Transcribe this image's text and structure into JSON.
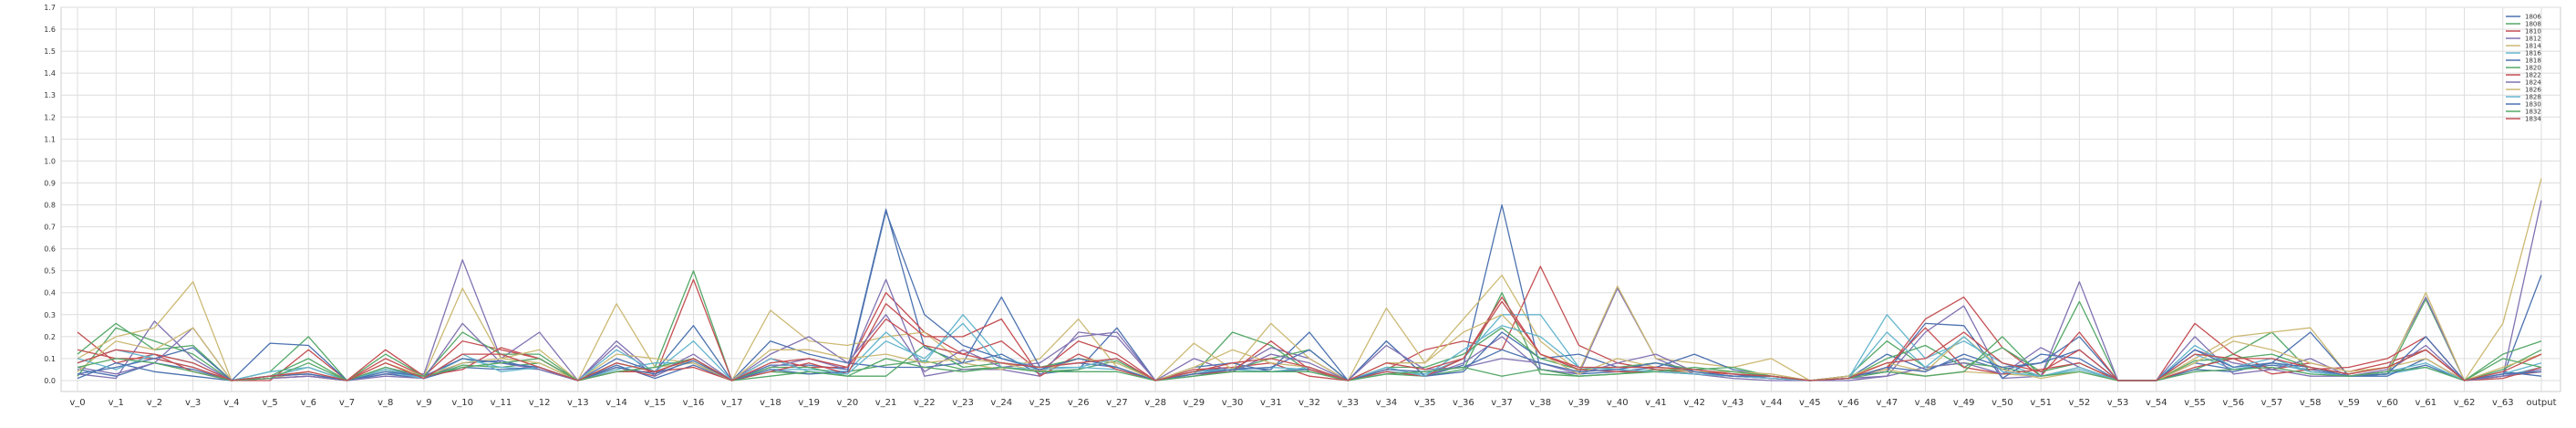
{
  "chart_data": {
    "type": "line",
    "title": "",
    "xlabel": "",
    "ylabel": "",
    "ylim": [
      -0.05,
      1.7
    ],
    "grid": true,
    "legend_position": "top-right",
    "yticks": [
      "0.0",
      "0.1",
      "0.2",
      "0.3",
      "0.4",
      "0.5",
      "0.6",
      "0.7",
      "0.8",
      "0.9",
      "1.0",
      "1.1",
      "1.2",
      "1.3",
      "1.4",
      "1.5",
      "1.6",
      "1.7"
    ],
    "categories": [
      "v_0",
      "v_1",
      "v_2",
      "v_3",
      "v_4",
      "v_5",
      "v_6",
      "v_7",
      "v_8",
      "v_9",
      "v_10",
      "v_11",
      "v_12",
      "v_13",
      "v_14",
      "v_15",
      "v_16",
      "v_17",
      "v_18",
      "v_19",
      "v_20",
      "v_21",
      "v_22",
      "v_23",
      "v_24",
      "v_25",
      "v_26",
      "v_27",
      "v_28",
      "v_29",
      "v_30",
      "v_31",
      "v_32",
      "v_33",
      "v_34",
      "v_35",
      "v_36",
      "v_37",
      "v_38",
      "v_39",
      "v_40",
      "v_41",
      "v_42",
      "v_43",
      "v_44",
      "v_45",
      "v_46",
      "v_47",
      "v_48",
      "v_49",
      "v_50",
      "v_51",
      "v_52",
      "v_53",
      "v_54",
      "v_55",
      "v_56",
      "v_57",
      "v_58",
      "v_59",
      "v_60",
      "v_61",
      "v_62",
      "v_63",
      "output"
    ],
    "series": [
      {
        "name": "1806",
        "color": "#4c72b0",
        "values": [
          0.05,
          0.02,
          0.08,
          0.05,
          0.0,
          0.02,
          0.03,
          0.0,
          0.06,
          0.01,
          0.08,
          0.09,
          0.05,
          0.0,
          0.07,
          0.01,
          0.07,
          0.0,
          0.07,
          0.07,
          0.05,
          0.78,
          0.15,
          0.08,
          0.12,
          0.03,
          0.05,
          0.24,
          0.0,
          0.04,
          0.06,
          0.05,
          0.22,
          0.0,
          0.04,
          0.02,
          0.07,
          0.8,
          0.05,
          0.03,
          0.04,
          0.06,
          0.05,
          0.03,
          0.01,
          0.0,
          0.01,
          0.12,
          0.05,
          0.1,
          0.05,
          0.08,
          0.2,
          0.0,
          0.0,
          0.08,
          0.05,
          0.07,
          0.05,
          0.02,
          0.03,
          0.07,
          0.0,
          0.02,
          0.48
        ]
      },
      {
        "name": "1808",
        "color": "#55a868",
        "values": [
          0.02,
          0.24,
          0.18,
          0.12,
          0.0,
          0.04,
          0.2,
          0.0,
          0.05,
          0.01,
          0.07,
          0.06,
          0.08,
          0.0,
          0.04,
          0.06,
          0.5,
          0.0,
          0.04,
          0.03,
          0.04,
          0.07,
          0.09,
          0.05,
          0.06,
          0.04,
          0.05,
          0.09,
          0.0,
          0.03,
          0.22,
          0.16,
          0.04,
          0.0,
          0.03,
          0.02,
          0.05,
          0.4,
          0.03,
          0.02,
          0.03,
          0.05,
          0.03,
          0.02,
          0.02,
          0.0,
          0.02,
          0.18,
          0.06,
          0.08,
          0.06,
          0.02,
          0.36,
          0.0,
          0.0,
          0.05,
          0.12,
          0.22,
          0.04,
          0.02,
          0.03,
          0.37,
          0.0,
          0.12,
          0.18
        ]
      },
      {
        "name": "1810",
        "color": "#c44e52",
        "values": [
          0.22,
          0.08,
          0.12,
          0.04,
          0.0,
          0.0,
          0.14,
          0.0,
          0.1,
          0.02,
          0.18,
          0.14,
          0.1,
          0.0,
          0.06,
          0.02,
          0.46,
          0.0,
          0.1,
          0.06,
          0.06,
          0.4,
          0.22,
          0.12,
          0.18,
          0.04,
          0.18,
          0.12,
          0.0,
          0.05,
          0.06,
          0.08,
          0.02,
          0.0,
          0.05,
          0.14,
          0.18,
          0.14,
          0.52,
          0.16,
          0.08,
          0.05,
          0.04,
          0.03,
          0.02,
          0.0,
          0.02,
          0.05,
          0.28,
          0.38,
          0.15,
          0.02,
          0.22,
          0.0,
          0.0,
          0.26,
          0.12,
          0.05,
          0.08,
          0.04,
          0.08,
          0.14,
          0.0,
          0.02,
          0.04
        ]
      },
      {
        "name": "1812",
        "color": "#8172b2",
        "values": [
          0.03,
          0.01,
          0.27,
          0.1,
          0.0,
          0.01,
          0.02,
          0.0,
          0.03,
          0.03,
          0.55,
          0.1,
          0.22,
          0.0,
          0.16,
          0.02,
          0.1,
          0.0,
          0.06,
          0.1,
          0.05,
          0.46,
          0.02,
          0.05,
          0.05,
          0.02,
          0.22,
          0.2,
          0.0,
          0.02,
          0.05,
          0.15,
          0.1,
          0.0,
          0.18,
          0.02,
          0.08,
          0.2,
          0.05,
          0.03,
          0.42,
          0.1,
          0.03,
          0.01,
          0.0,
          0.0,
          0.0,
          0.02,
          0.22,
          0.34,
          0.01,
          0.02,
          0.45,
          0.0,
          0.0,
          0.14,
          0.08,
          0.05,
          0.02,
          0.02,
          0.05,
          0.38,
          0.0,
          0.02,
          0.82
        ]
      },
      {
        "name": "1814",
        "color": "#ccb974",
        "values": [
          0.1,
          0.2,
          0.24,
          0.45,
          0.0,
          0.01,
          0.04,
          0.0,
          0.04,
          0.02,
          0.42,
          0.1,
          0.08,
          0.0,
          0.35,
          0.06,
          0.08,
          0.0,
          0.32,
          0.18,
          0.16,
          0.2,
          0.22,
          0.08,
          0.05,
          0.1,
          0.28,
          0.06,
          0.0,
          0.17,
          0.05,
          0.26,
          0.1,
          0.0,
          0.33,
          0.08,
          0.28,
          0.48,
          0.18,
          0.04,
          0.43,
          0.1,
          0.08,
          0.06,
          0.1,
          0.0,
          0.02,
          0.05,
          0.02,
          0.04,
          0.03,
          0.02,
          0.06,
          0.0,
          0.0,
          0.1,
          0.2,
          0.22,
          0.24,
          0.02,
          0.04,
          0.4,
          0.0,
          0.26,
          0.92
        ]
      },
      {
        "name": "1816",
        "color": "#64b5cd",
        "values": [
          0.08,
          0.14,
          0.1,
          0.06,
          0.0,
          0.04,
          0.06,
          0.0,
          0.05,
          0.01,
          0.1,
          0.06,
          0.05,
          0.0,
          0.05,
          0.08,
          0.08,
          0.0,
          0.05,
          0.05,
          0.04,
          0.22,
          0.08,
          0.3,
          0.1,
          0.06,
          0.06,
          0.05,
          0.0,
          0.03,
          0.05,
          0.06,
          0.05,
          0.0,
          0.04,
          0.03,
          0.1,
          0.3,
          0.3,
          0.06,
          0.05,
          0.04,
          0.03,
          0.02,
          0.01,
          0.0,
          0.01,
          0.3,
          0.1,
          0.18,
          0.08,
          0.02,
          0.05,
          0.0,
          0.0,
          0.12,
          0.05,
          0.08,
          0.04,
          0.02,
          0.03,
          0.06,
          0.0,
          0.02,
          0.06
        ]
      },
      {
        "name": "1818",
        "color": "#4c72b0",
        "values": [
          0.01,
          0.08,
          0.04,
          0.02,
          0.0,
          0.17,
          0.16,
          0.0,
          0.03,
          0.01,
          0.06,
          0.05,
          0.06,
          0.0,
          0.1,
          0.04,
          0.25,
          0.0,
          0.18,
          0.12,
          0.08,
          0.06,
          0.06,
          0.08,
          0.38,
          0.06,
          0.08,
          0.06,
          0.0,
          0.06,
          0.08,
          0.04,
          0.05,
          0.0,
          0.18,
          0.02,
          0.04,
          0.22,
          0.1,
          0.12,
          0.06,
          0.06,
          0.12,
          0.05,
          0.02,
          0.0,
          0.02,
          0.04,
          0.26,
          0.25,
          0.01,
          0.12,
          0.1,
          0.0,
          0.0,
          0.05,
          0.04,
          0.08,
          0.22,
          0.02,
          0.02,
          0.1,
          0.0,
          0.04,
          0.02
        ]
      },
      {
        "name": "1820",
        "color": "#55a868",
        "values": [
          0.12,
          0.26,
          0.14,
          0.16,
          0.0,
          0.02,
          0.1,
          0.0,
          0.12,
          0.02,
          0.22,
          0.12,
          0.12,
          0.0,
          0.08,
          0.04,
          0.1,
          0.0,
          0.06,
          0.06,
          0.02,
          0.02,
          0.16,
          0.06,
          0.08,
          0.06,
          0.1,
          0.08,
          0.0,
          0.04,
          0.05,
          0.1,
          0.14,
          0.0,
          0.06,
          0.06,
          0.12,
          0.24,
          0.1,
          0.05,
          0.06,
          0.08,
          0.05,
          0.06,
          0.02,
          0.0,
          0.01,
          0.1,
          0.16,
          0.06,
          0.15,
          0.04,
          0.08,
          0.0,
          0.0,
          0.09,
          0.1,
          0.12,
          0.06,
          0.03,
          0.06,
          0.14,
          0.0,
          0.05,
          0.14
        ]
      },
      {
        "name": "1822",
        "color": "#c44e52",
        "values": [
          0.14,
          0.1,
          0.1,
          0.06,
          0.0,
          0.01,
          0.02,
          0.0,
          0.14,
          0.02,
          0.05,
          0.15,
          0.1,
          0.0,
          0.04,
          0.04,
          0.06,
          0.0,
          0.04,
          0.08,
          0.03,
          0.35,
          0.2,
          0.2,
          0.28,
          0.02,
          0.12,
          0.05,
          0.0,
          0.03,
          0.04,
          0.18,
          0.05,
          0.0,
          0.04,
          0.02,
          0.1,
          0.38,
          0.12,
          0.05,
          0.04,
          0.04,
          0.03,
          0.02,
          0.01,
          0.0,
          0.01,
          0.06,
          0.24,
          0.06,
          0.03,
          0.05,
          0.08,
          0.0,
          0.0,
          0.06,
          0.1,
          0.03,
          0.05,
          0.06,
          0.1,
          0.2,
          0.0,
          0.01,
          0.06
        ]
      },
      {
        "name": "1824",
        "color": "#8172b2",
        "values": [
          0.06,
          0.03,
          0.08,
          0.24,
          0.0,
          0.01,
          0.02,
          0.0,
          0.02,
          0.01,
          0.26,
          0.08,
          0.05,
          0.0,
          0.18,
          0.03,
          0.12,
          0.0,
          0.12,
          0.2,
          0.08,
          0.3,
          0.04,
          0.14,
          0.06,
          0.08,
          0.2,
          0.22,
          0.0,
          0.1,
          0.04,
          0.12,
          0.08,
          0.0,
          0.16,
          0.05,
          0.06,
          0.1,
          0.08,
          0.03,
          0.08,
          0.12,
          0.04,
          0.02,
          0.01,
          0.0,
          0.01,
          0.02,
          0.06,
          0.08,
          0.03,
          0.15,
          0.06,
          0.0,
          0.0,
          0.2,
          0.03,
          0.05,
          0.1,
          0.02,
          0.04,
          0.16,
          0.0,
          0.02,
          0.05
        ]
      },
      {
        "name": "1826",
        "color": "#ccb974",
        "values": [
          0.04,
          0.18,
          0.14,
          0.24,
          0.0,
          0.02,
          0.06,
          0.0,
          0.08,
          0.02,
          0.08,
          0.1,
          0.14,
          0.0,
          0.12,
          0.1,
          0.08,
          0.0,
          0.14,
          0.14,
          0.1,
          0.12,
          0.08,
          0.1,
          0.08,
          0.04,
          0.1,
          0.08,
          0.0,
          0.06,
          0.14,
          0.08,
          0.06,
          0.0,
          0.08,
          0.08,
          0.22,
          0.3,
          0.12,
          0.03,
          0.1,
          0.06,
          0.04,
          0.04,
          0.03,
          0.0,
          0.02,
          0.08,
          0.04,
          0.2,
          0.05,
          0.01,
          0.04,
          0.0,
          0.0,
          0.08,
          0.18,
          0.14,
          0.08,
          0.04,
          0.06,
          0.1,
          0.0,
          0.06,
          0.12
        ]
      },
      {
        "name": "1828",
        "color": "#64b5cd",
        "values": [
          0.1,
          0.05,
          0.12,
          0.08,
          0.0,
          0.02,
          0.06,
          0.0,
          0.04,
          0.01,
          0.12,
          0.04,
          0.06,
          0.0,
          0.14,
          0.04,
          0.18,
          0.0,
          0.1,
          0.04,
          0.03,
          0.18,
          0.1,
          0.26,
          0.06,
          0.05,
          0.06,
          0.1,
          0.0,
          0.04,
          0.05,
          0.04,
          0.06,
          0.0,
          0.06,
          0.02,
          0.14,
          0.25,
          0.2,
          0.06,
          0.05,
          0.04,
          0.03,
          0.02,
          0.01,
          0.0,
          0.01,
          0.22,
          0.06,
          0.2,
          0.04,
          0.02,
          0.06,
          0.0,
          0.0,
          0.16,
          0.06,
          0.1,
          0.04,
          0.02,
          0.04,
          0.08,
          0.0,
          0.03,
          0.08
        ]
      },
      {
        "name": "1830",
        "color": "#4c72b0",
        "values": [
          0.03,
          0.06,
          0.1,
          0.15,
          0.0,
          0.02,
          0.03,
          0.0,
          0.04,
          0.02,
          0.1,
          0.08,
          0.06,
          0.0,
          0.06,
          0.03,
          0.09,
          0.0,
          0.05,
          0.03,
          0.04,
          0.77,
          0.3,
          0.16,
          0.1,
          0.05,
          0.1,
          0.06,
          0.0,
          0.03,
          0.05,
          0.06,
          0.14,
          0.0,
          0.05,
          0.04,
          0.06,
          0.14,
          0.08,
          0.04,
          0.05,
          0.08,
          0.04,
          0.02,
          0.02,
          0.0,
          0.01,
          0.06,
          0.04,
          0.12,
          0.06,
          0.08,
          0.14,
          0.0,
          0.0,
          0.14,
          0.06,
          0.08,
          0.06,
          0.02,
          0.03,
          0.2,
          0.0,
          0.03,
          0.04
        ]
      },
      {
        "name": "1832",
        "color": "#55a868",
        "values": [
          0.06,
          0.1,
          0.08,
          0.04,
          0.0,
          0.01,
          0.08,
          0.0,
          0.06,
          0.02,
          0.06,
          0.08,
          0.1,
          0.0,
          0.04,
          0.06,
          0.1,
          0.0,
          0.02,
          0.04,
          0.02,
          0.1,
          0.06,
          0.04,
          0.06,
          0.04,
          0.04,
          0.04,
          0.0,
          0.02,
          0.04,
          0.04,
          0.04,
          0.0,
          0.03,
          0.04,
          0.06,
          0.02,
          0.05,
          0.02,
          0.03,
          0.04,
          0.06,
          0.04,
          0.02,
          0.0,
          0.01,
          0.04,
          0.02,
          0.04,
          0.2,
          0.02,
          0.04,
          0.0,
          0.0,
          0.04,
          0.05,
          0.06,
          0.03,
          0.02,
          0.04,
          0.06,
          0.0,
          0.1,
          0.06
        ]
      },
      {
        "name": "1834",
        "color": "#c44e52",
        "values": [
          0.08,
          0.14,
          0.12,
          0.08,
          0.0,
          0.02,
          0.04,
          0.0,
          0.08,
          0.01,
          0.12,
          0.12,
          0.06,
          0.0,
          0.08,
          0.04,
          0.1,
          0.0,
          0.08,
          0.1,
          0.06,
          0.28,
          0.16,
          0.12,
          0.08,
          0.06,
          0.08,
          0.1,
          0.0,
          0.04,
          0.08,
          0.1,
          0.06,
          0.0,
          0.08,
          0.05,
          0.1,
          0.36,
          0.12,
          0.06,
          0.06,
          0.06,
          0.05,
          0.03,
          0.02,
          0.0,
          0.01,
          0.08,
          0.1,
          0.22,
          0.08,
          0.04,
          0.14,
          0.0,
          0.0,
          0.12,
          0.1,
          0.1,
          0.06,
          0.03,
          0.06,
          0.14,
          0.0,
          0.04,
          0.12
        ]
      }
    ]
  }
}
